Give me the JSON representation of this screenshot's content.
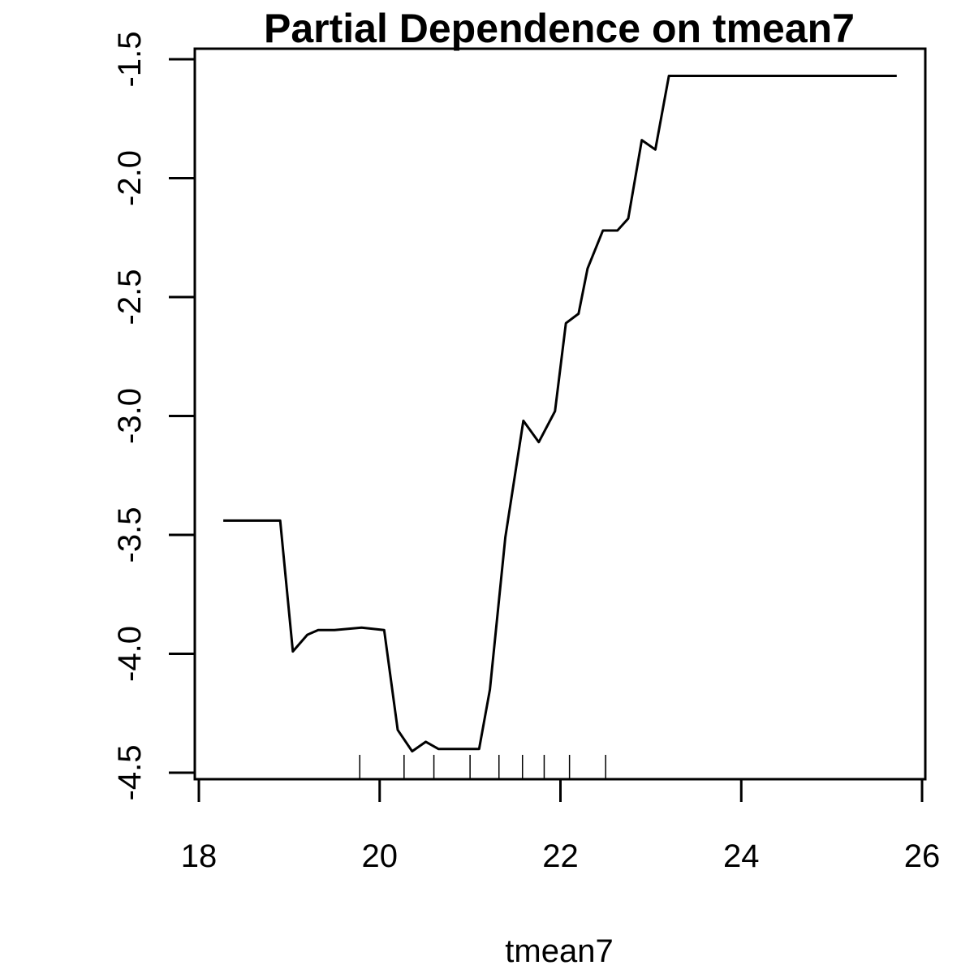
{
  "chart_data": {
    "type": "line",
    "title": "Partial Dependence on tmean7",
    "xlabel": "tmean7",
    "ylabel": "",
    "xlim": [
      18,
      26
    ],
    "ylim": [
      -4.5,
      -1.5
    ],
    "x_ticks": [
      "18",
      "20",
      "22",
      "24",
      "26"
    ],
    "y_ticks": [
      "-4.5",
      "-4.0",
      "-3.5",
      "-3.0",
      "-2.5",
      "-2.0",
      "-1.5"
    ],
    "grid": false,
    "legend": "none",
    "series": [
      {
        "x": [
          18.27,
          18.9,
          19.04,
          19.2,
          19.32,
          19.5,
          19.8,
          20.05,
          20.2,
          20.36,
          20.51,
          20.65,
          20.8,
          21.1,
          21.22,
          21.39,
          21.59,
          21.76,
          21.94,
          22.06,
          22.2,
          22.3,
          22.47,
          22.63,
          22.75,
          22.9,
          23.05,
          23.2,
          25.72
        ],
        "y": [
          -3.44,
          -3.44,
          -3.99,
          -3.92,
          -3.9,
          -3.9,
          -3.89,
          -3.9,
          -4.32,
          -4.41,
          -4.37,
          -4.4,
          -4.4,
          -4.4,
          -4.15,
          -3.51,
          -3.02,
          -3.11,
          -2.98,
          -2.61,
          -2.57,
          -2.38,
          -2.22,
          -2.22,
          -2.17,
          -1.84,
          -1.88,
          -1.57,
          -1.57
        ]
      }
    ],
    "rug": [
      19.78,
      20.27,
      20.6,
      21.0,
      21.32,
      21.58,
      21.82,
      22.1,
      22.5
    ]
  }
}
